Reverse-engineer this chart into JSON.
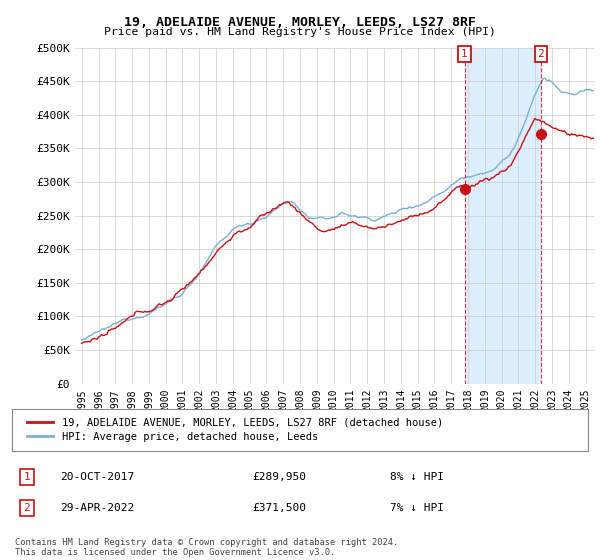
{
  "title": "19, ADELAIDE AVENUE, MORLEY, LEEDS, LS27 8RF",
  "subtitle": "Price paid vs. HM Land Registry's House Price Index (HPI)",
  "ylabel_ticks": [
    "£0",
    "£50K",
    "£100K",
    "£150K",
    "£200K",
    "£250K",
    "£300K",
    "£350K",
    "£400K",
    "£450K",
    "£500K"
  ],
  "ytick_values": [
    0,
    50000,
    100000,
    150000,
    200000,
    250000,
    300000,
    350000,
    400000,
    450000,
    500000
  ],
  "ylim": [
    0,
    500000
  ],
  "hpi_color": "#7ab0d4",
  "price_color": "#cc1111",
  "shade_color": "#ddeeff",
  "legend_entries": [
    "19, ADELAIDE AVENUE, MORLEY, LEEDS, LS27 8RF (detached house)",
    "HPI: Average price, detached house, Leeds"
  ],
  "annotation1": {
    "label": "1",
    "date": "20-OCT-2017",
    "price": "£289,950",
    "pct": "8% ↓ HPI"
  },
  "annotation2": {
    "label": "2",
    "date": "29-APR-2022",
    "price": "£371,500",
    "pct": "7% ↓ HPI"
  },
  "footer": "Contains HM Land Registry data © Crown copyright and database right 2024.\nThis data is licensed under the Open Government Licence v3.0.",
  "background_color": "#ffffff",
  "grid_color": "#cccccc",
  "t1": 2017.79,
  "t2": 2022.33,
  "p1": 289950,
  "p2": 371500
}
